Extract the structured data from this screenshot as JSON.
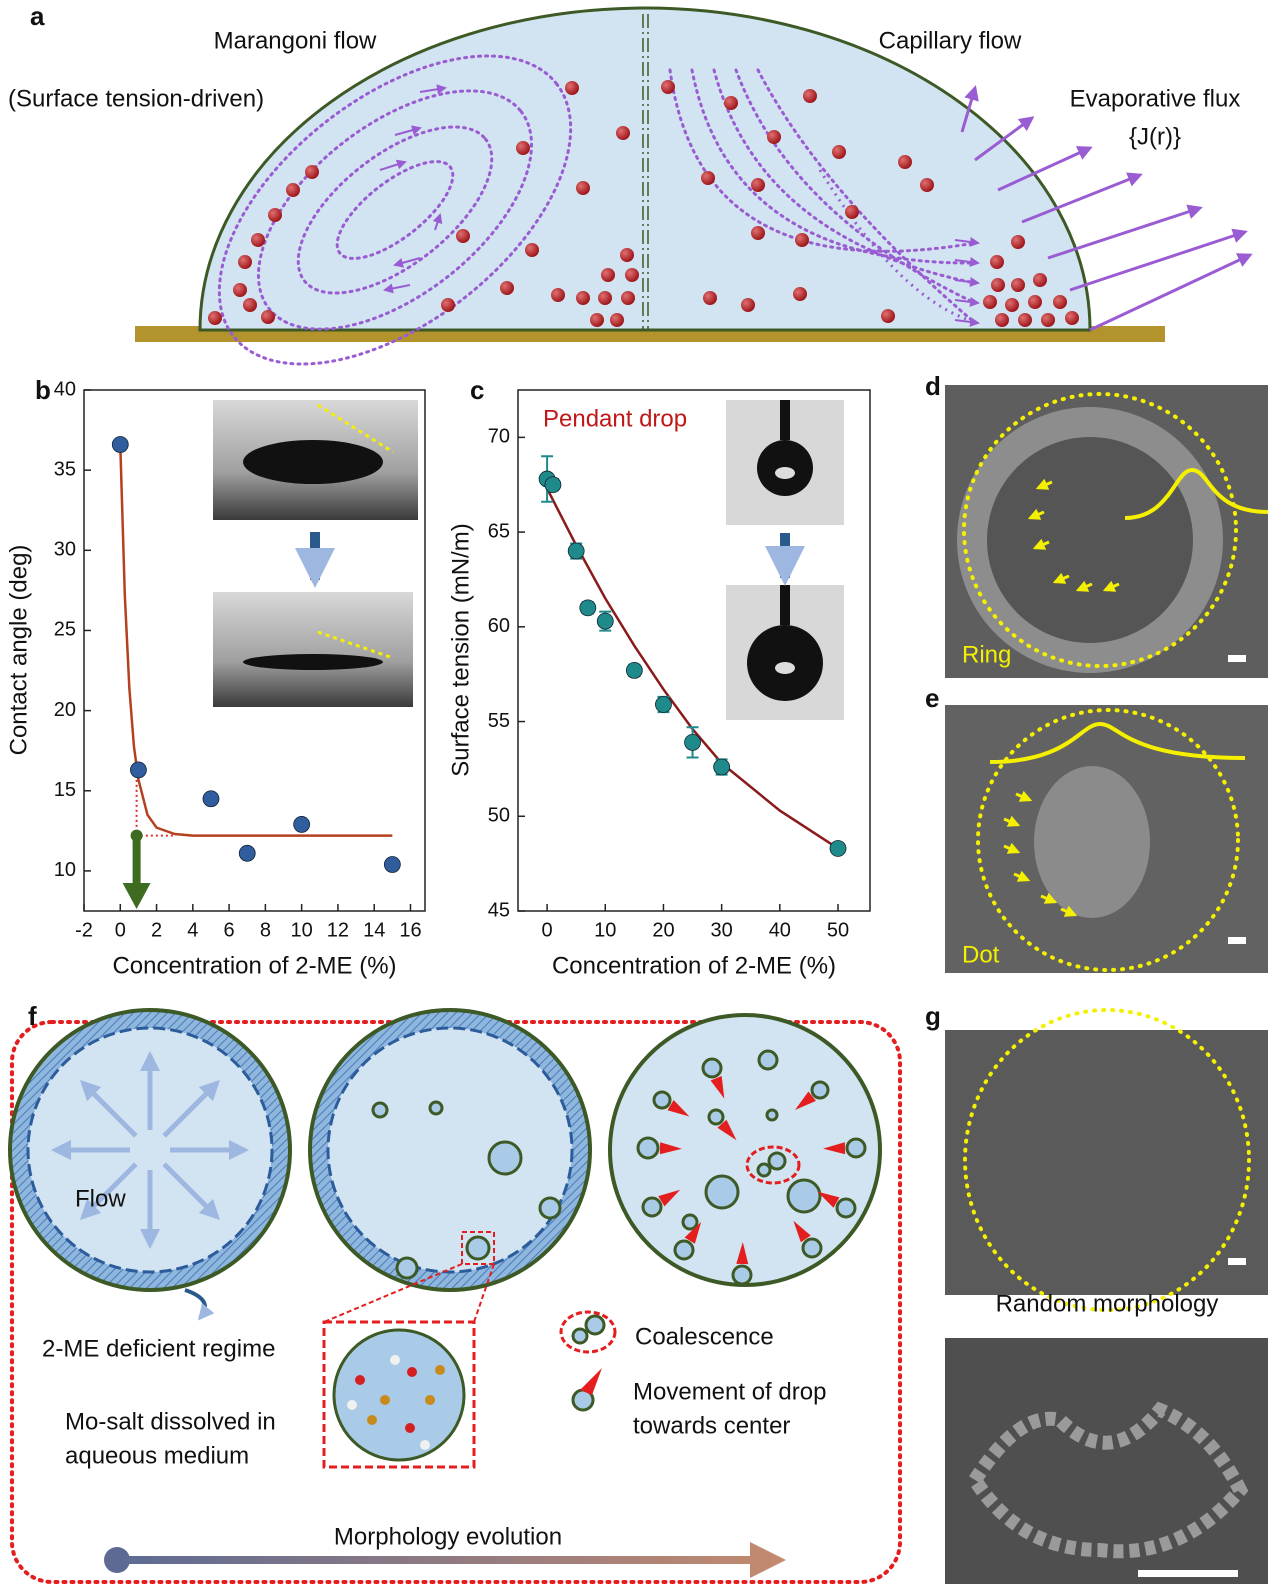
{
  "panel_a": {
    "label": "a",
    "marangoni": "Marangoni flow",
    "marangoni_note": "(Surface tension-driven)",
    "capillary": "Capillary flow",
    "flux": "Evaporative flux",
    "flux_symbol": "{J(r)}"
  },
  "chart_data": [
    {
      "type": "scatter",
      "label": "b",
      "xlabel": "Concentration of 2-ME (%)",
      "ylabel": "Contact angle (deg)",
      "xlim": [
        -2,
        16.8
      ],
      "ylim": [
        7.5,
        40
      ],
      "xticks": [
        -2,
        0,
        2,
        4,
        6,
        8,
        10,
        12,
        14,
        16
      ],
      "yticks": [
        10,
        15,
        20,
        25,
        30,
        35,
        40
      ],
      "series": [
        {
          "color": "#2f5d9e",
          "x": [
            0,
            1,
            5,
            7,
            10,
            15
          ],
          "values": [
            36.6,
            16.3,
            14.5,
            11.1,
            12.9,
            10.4
          ]
        }
      ],
      "fit": {
        "color": "#b5401e",
        "x": [
          0,
          0.25,
          0.5,
          0.75,
          1,
          1.5,
          2,
          3,
          4,
          8,
          15
        ],
        "values": [
          36.6,
          27.2,
          21.4,
          17.8,
          15.7,
          13.5,
          12.7,
          12.3,
          12.2,
          12.2,
          12.2
        ]
      },
      "guide": {
        "color": "#e03030",
        "x": [
          0.9,
          0.9,
          3
        ],
        "values": [
          16.3,
          12.2,
          12.2
        ]
      }
    },
    {
      "type": "scatter",
      "label": "c",
      "xlabel": "Concentration of 2-ME (%)",
      "ylabel": "Surface tension (mN/m)",
      "annotation": "Pendant drop",
      "xlim": [
        -5,
        55.5
      ],
      "ylim": [
        45,
        72.5
      ],
      "xticks": [
        0,
        10,
        20,
        30,
        40,
        50
      ],
      "yticks": [
        45,
        50,
        55,
        60,
        65,
        70
      ],
      "series": [
        {
          "color": "#1f8a8a",
          "x": [
            0,
            1,
            5,
            7,
            10,
            15,
            20,
            25,
            30,
            50
          ],
          "values": [
            67.8,
            67.5,
            64.0,
            61.0,
            60.3,
            57.7,
            55.9,
            53.9,
            52.6,
            48.3
          ],
          "errors": [
            1.2,
            0.3,
            0.4,
            0.3,
            0.5,
            0.3,
            0.4,
            0.8,
            0.4,
            0.2
          ]
        }
      ],
      "fit": {
        "color": "#8b1a1a",
        "x": [
          0,
          5,
          10,
          15,
          20,
          25,
          30,
          40,
          50
        ],
        "values": [
          67.3,
          64.3,
          61.5,
          59.0,
          56.7,
          54.6,
          52.8,
          50.3,
          48.3
        ]
      }
    }
  ],
  "panel_d": {
    "label": "d",
    "caption": "Ring"
  },
  "panel_e": {
    "label": "e",
    "caption": "Dot"
  },
  "panel_f": {
    "label": "f",
    "flow": "Flow",
    "regime": "2-ME deficient regime",
    "medium": [
      "Mo-salt dissolved in",
      "aqueous medium"
    ],
    "coalescence": "Coalescence",
    "movement": [
      "Movement of drop",
      "towards center"
    ],
    "evolution": "Morphology evolution"
  },
  "panel_g": {
    "label": "g",
    "caption": "Random morphology"
  }
}
